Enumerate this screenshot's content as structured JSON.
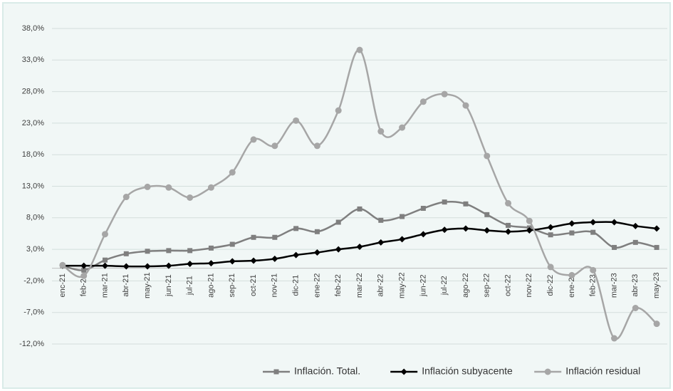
{
  "chart_data": {
    "type": "line",
    "categories": [
      "enc-21",
      "feb-21",
      "mar-21",
      "abr-21",
      "may-21",
      "jun-21",
      "jul-21",
      "ago-21",
      "sep-21",
      "oct-21",
      "nov-21",
      "dic-21",
      "ene-22",
      "feb-22",
      "mar-22",
      "abr-22",
      "may-22",
      "jun-22",
      "jul-22",
      "ago-22",
      "sep-22",
      "oct-22",
      "nov-22",
      "dic-22",
      "ene-23",
      "feb-23",
      "mar-23",
      "abr-23",
      "may-23"
    ],
    "series": [
      {
        "name": "Inflación. Total.",
        "color": "#7f7f7f",
        "marker": "square",
        "values": [
          0.4,
          -0.3,
          1.3,
          2.3,
          2.7,
          2.8,
          2.8,
          3.2,
          3.8,
          4.9,
          4.9,
          6.3,
          5.8,
          7.3,
          9.4,
          7.6,
          8.2,
          9.5,
          10.5,
          10.2,
          8.5,
          6.8,
          6.4,
          5.3,
          5.6,
          5.7,
          3.3,
          4.1,
          3.3
        ]
      },
      {
        "name": "Inflación subyacente",
        "color": "#000000",
        "marker": "diamond",
        "values": [
          0.4,
          0.4,
          0.4,
          0.3,
          0.3,
          0.4,
          0.7,
          0.8,
          1.1,
          1.2,
          1.5,
          2.1,
          2.5,
          3.0,
          3.4,
          4.1,
          4.6,
          5.4,
          6.1,
          6.3,
          6.0,
          5.8,
          6.0,
          6.5,
          7.1,
          7.3,
          7.3,
          6.7,
          6.3
        ]
      },
      {
        "name": "Inflación residual",
        "color": "#a6a6a6",
        "marker": "circle",
        "values": [
          0.5,
          -1.2,
          5.4,
          11.3,
          12.9,
          12.8,
          11.2,
          12.8,
          15.2,
          20.4,
          19.4,
          23.4,
          19.4,
          25.0,
          34.6,
          21.7,
          22.3,
          26.4,
          27.6,
          25.8,
          17.8,
          10.3,
          7.5,
          0.2,
          -1.1,
          -0.3,
          -11.1,
          -6.3,
          -8.8
        ]
      }
    ],
    "ylim": [
      -12,
      38
    ],
    "yticks": [
      {
        "value": -12,
        "label": "-12,0%"
      },
      {
        "value": -7,
        "label": "-7,0%"
      },
      {
        "value": -2,
        "label": "-2,0%"
      },
      {
        "value": 3,
        "label": "3,0%"
      },
      {
        "value": 8,
        "label": "8,0%"
      },
      {
        "value": 13,
        "label": "13,0%"
      },
      {
        "value": 18,
        "label": "18,0%"
      },
      {
        "value": 23,
        "label": "23,0%"
      },
      {
        "value": 28,
        "label": "28,0%"
      },
      {
        "value": 33,
        "label": "33,0%"
      },
      {
        "value": 38,
        "label": "38,0%"
      }
    ],
    "grid": true,
    "legend": "bottom-right"
  }
}
